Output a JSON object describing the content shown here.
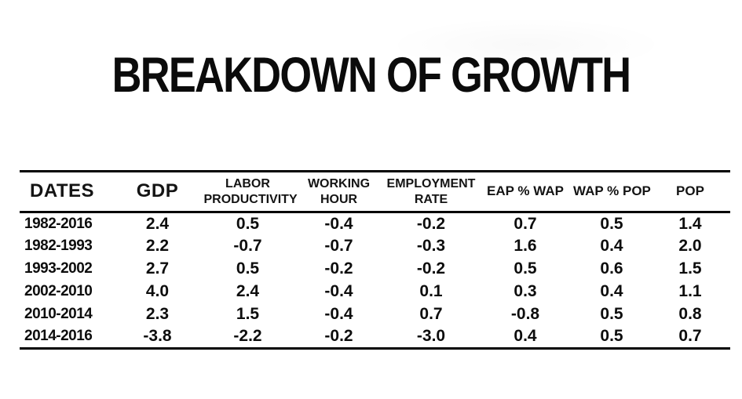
{
  "title": "BREAKDOWN OF GROWTH",
  "colors": {
    "background": "#ffffff",
    "text": "#0d0d0d",
    "rule": "#000000"
  },
  "chart_data": {
    "type": "table",
    "title": "BREAKDOWN OF GROWTH",
    "columns": [
      "DATES",
      "GDP",
      "LABOR PRODUCTIVITY",
      "WORKING HOUR",
      "EMPLOYMENT RATE",
      "EAP % WAP",
      "WAP % POP",
      "POP"
    ],
    "rows": [
      [
        "1982-2016",
        "2.4",
        "0.5",
        "-0.4",
        "-0.2",
        "0.7",
        "0.5",
        "1.4"
      ],
      [
        "1982-1993",
        "2.2",
        "-0.7",
        "-0.7",
        "-0.3",
        "1.6",
        "0.4",
        "2.0"
      ],
      [
        "1993-2002",
        "2.7",
        "0.5",
        "-0.2",
        "-0.2",
        "0.5",
        "0.6",
        "1.5"
      ],
      [
        "2002-2010",
        "4.0",
        "2.4",
        "-0.4",
        "0.1",
        "0.3",
        "0.4",
        "1.1"
      ],
      [
        "2010-2014",
        "2.3",
        "1.5",
        "-0.4",
        "0.7",
        "-0.8",
        "0.5",
        "0.8"
      ],
      [
        "2014-2016",
        "-3.8",
        "-2.2",
        "-0.2",
        "-3.0",
        "0.4",
        "0.5",
        "0.7"
      ]
    ],
    "layout": {
      "grid": "horizontal rules only (top, under header, bottom)",
      "header_rows": 1
    }
  }
}
